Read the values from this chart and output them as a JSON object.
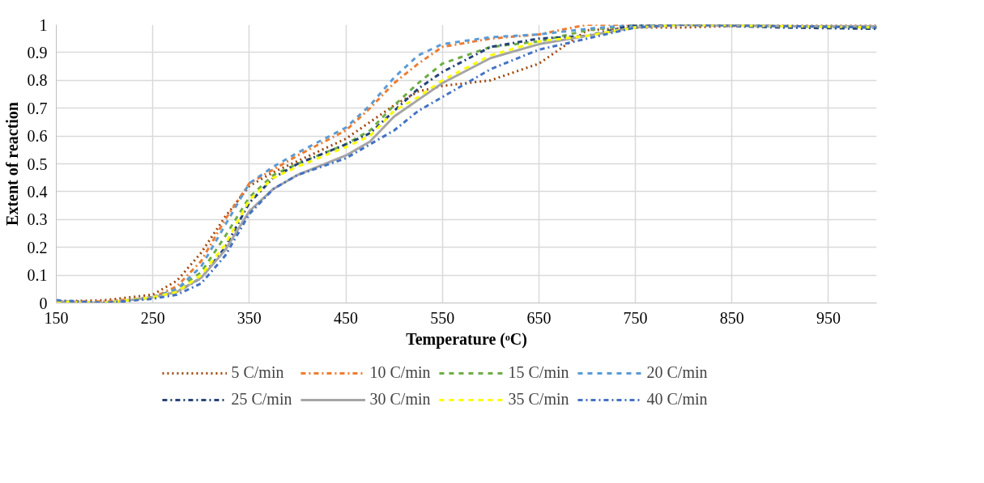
{
  "chart_data": {
    "type": "line",
    "xlabel": "Temperature (ᵒC)",
    "ylabel": "Extent of reaction",
    "xlim": [
      150,
      1000
    ],
    "xticks": [
      150,
      250,
      350,
      450,
      550,
      650,
      750,
      850,
      950
    ],
    "ylim": [
      0,
      1
    ],
    "yticks": [
      0,
      0.1,
      0.2,
      0.3,
      0.4,
      0.5,
      0.6,
      0.7,
      0.8,
      0.9,
      1
    ],
    "grid": true,
    "legend": "bottom",
    "marker": "none",
    "x": [
      150,
      200,
      250,
      275,
      300,
      325,
      350,
      375,
      400,
      450,
      475,
      500,
      525,
      550,
      600,
      650,
      700,
      750,
      800,
      900,
      1000
    ],
    "series": [
      {
        "name": "5 C/min",
        "color": "#9e480e",
        "line_style": "dotted",
        "values": [
          0.005,
          0.01,
          0.03,
          0.08,
          0.18,
          0.31,
          0.42,
          0.47,
          0.51,
          0.59,
          0.65,
          0.71,
          0.76,
          0.78,
          0.8,
          0.86,
          0.98,
          0.99,
          0.99,
          1.0,
          1.0
        ]
      },
      {
        "name": "10 C/min",
        "color": "#ed7d31",
        "line_style": "dashdot",
        "values": [
          0.005,
          0.005,
          0.02,
          0.06,
          0.15,
          0.3,
          0.43,
          0.48,
          0.53,
          0.62,
          0.7,
          0.79,
          0.86,
          0.92,
          0.95,
          0.965,
          1.0,
          1.0,
          1.0,
          0.995,
          0.99
        ]
      },
      {
        "name": "15 C/min",
        "color": "#70ad47",
        "line_style": "dashed",
        "values": [
          0.005,
          0.0,
          0.02,
          0.05,
          0.11,
          0.24,
          0.38,
          0.46,
          0.5,
          0.57,
          0.62,
          0.71,
          0.79,
          0.86,
          0.92,
          0.94,
          0.98,
          1.0,
          1.0,
          0.995,
          0.99
        ]
      },
      {
        "name": "20 C/min",
        "color": "#5b9bd5",
        "line_style": "dashed",
        "values": [
          0.005,
          0.0,
          0.02,
          0.05,
          0.13,
          0.28,
          0.43,
          0.49,
          0.54,
          0.63,
          0.71,
          0.81,
          0.89,
          0.93,
          0.955,
          0.965,
          0.985,
          1.0,
          1.0,
          0.995,
          0.99
        ]
      },
      {
        "name": "25 C/min",
        "color": "#264478",
        "line_style": "dashdot",
        "values": [
          0.005,
          0.0,
          0.02,
          0.04,
          0.09,
          0.2,
          0.36,
          0.45,
          0.5,
          0.57,
          0.61,
          0.69,
          0.77,
          0.83,
          0.92,
          0.95,
          0.96,
          1.0,
          1.0,
          0.99,
          0.985
        ]
      },
      {
        "name": "30 C/min",
        "color": "#a5a5a5",
        "line_style": "solid",
        "values": [
          0.005,
          0.0,
          0.02,
          0.04,
          0.09,
          0.19,
          0.33,
          0.41,
          0.46,
          0.53,
          0.58,
          0.67,
          0.73,
          0.79,
          0.88,
          0.93,
          0.96,
          0.99,
          1.0,
          0.995,
          0.995
        ]
      },
      {
        "name": "35 C/min",
        "color": "#ffff00",
        "line_style": "dashed",
        "values": [
          0.005,
          0.0,
          0.02,
          0.04,
          0.1,
          0.21,
          0.37,
          0.45,
          0.49,
          0.56,
          0.6,
          0.69,
          0.74,
          0.8,
          0.89,
          0.94,
          0.96,
          0.99,
          1.0,
          0.995,
          0.99
        ]
      },
      {
        "name": "40 C/min",
        "color": "#4472c4",
        "line_style": "dashdot",
        "values": [
          0.01,
          0.0,
          0.015,
          0.03,
          0.07,
          0.17,
          0.32,
          0.41,
          0.46,
          0.52,
          0.57,
          0.62,
          0.69,
          0.74,
          0.84,
          0.91,
          0.95,
          0.99,
          1.0,
          0.995,
          0.99
        ]
      }
    ]
  }
}
